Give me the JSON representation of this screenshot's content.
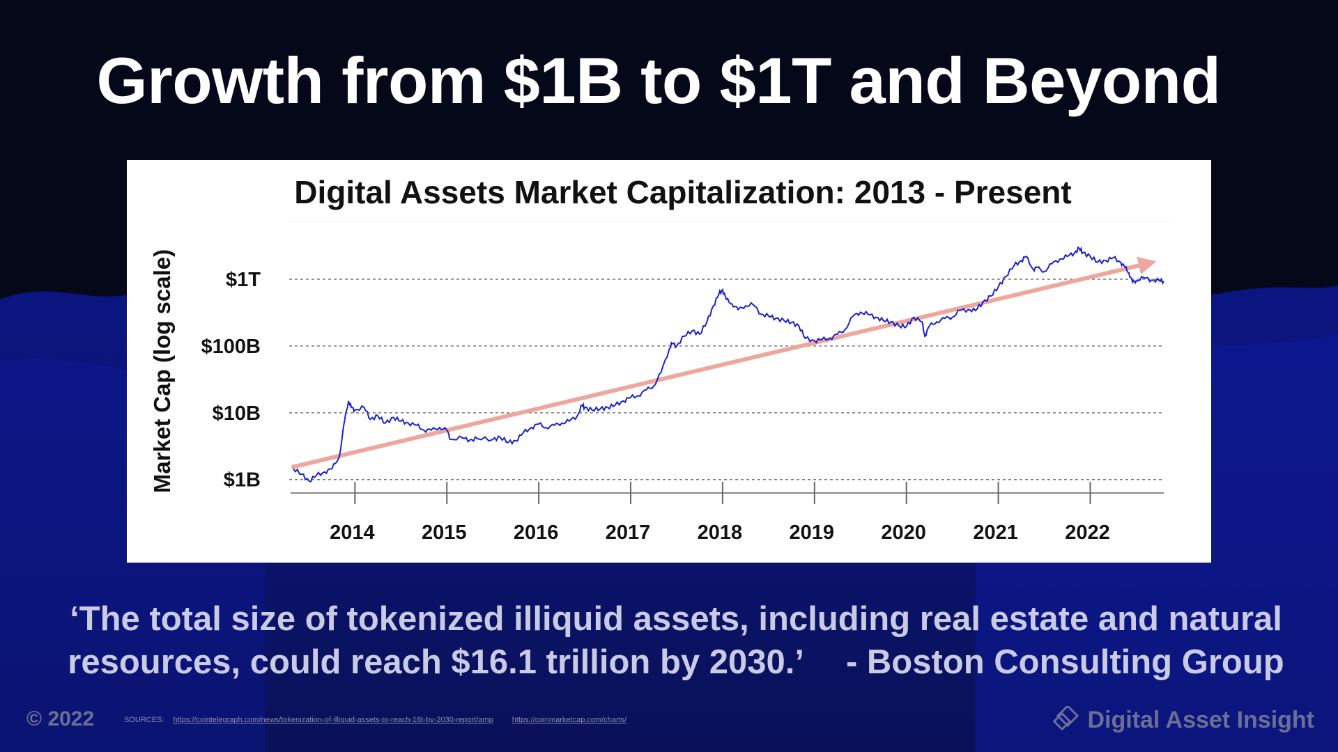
{
  "slide": {
    "headline": "Growth from $1B to $1T and Beyond",
    "quote_line1": "‘The total size of tokenized illiquid assets, including real estate and natural",
    "quote_line2": "resources, could reach $16.1 trillion by 2030.’",
    "quote_attribution": "- Boston Consulting Group",
    "copyright": "© 2022",
    "sources_label": "SOURCES:",
    "source_links": [
      "https://cointelegraph.com/news/tokenization-of-illiquid-assets-to-reach-16t-by-2030-report/amp",
      "https://coinmarketcap.com/charts/"
    ],
    "brand": "Digital Asset Insight",
    "logo_icon": "diamond-tag-icon"
  },
  "colors": {
    "background": "#050818",
    "wave": "#0e1a8c",
    "series_line": "#1a22c8",
    "trend_arrow": "#eda79c",
    "quote_text": "#c9cbe4"
  },
  "chart_data": {
    "type": "line",
    "title": "Digital Assets Market Capitalization: 2013 - Present",
    "ylabel": "Market Cap (log scale)",
    "xlabel": "",
    "y_scale": "log",
    "y_ticks": [
      {
        "value": 1000000000,
        "label": "$1B"
      },
      {
        "value": 10000000000,
        "label": "$10B"
      },
      {
        "value": 100000000000,
        "label": "$100B"
      },
      {
        "value": 1000000000000,
        "label": "$1T"
      }
    ],
    "ylim": [
      800000000,
      5000000000000
    ],
    "x_ticks": [
      2014,
      2015,
      2016,
      2017,
      2018,
      2019,
      2020,
      2021,
      2022
    ],
    "xlim": [
      2013.3,
      2022.8
    ],
    "grid": "horizontal-dashed",
    "series": [
      {
        "values": [
          [
            2013.33,
            1450000000.0
          ],
          [
            2013.42,
            1200000000.0
          ],
          [
            2013.5,
            950000000.0
          ],
          [
            2013.58,
            1150000000.0
          ],
          [
            2013.67,
            1300000000.0
          ],
          [
            2013.75,
            1450000000.0
          ],
          [
            2013.83,
            2200000000.0
          ],
          [
            2013.89,
            8000000000.0
          ],
          [
            2013.93,
            15000000000.0
          ],
          [
            2013.96,
            12000000000.0
          ],
          [
            2014.0,
            11000000000.0
          ],
          [
            2014.1,
            12000000000.0
          ],
          [
            2014.17,
            8000000000.0
          ],
          [
            2014.25,
            9000000000.0
          ],
          [
            2014.33,
            7000000000.0
          ],
          [
            2014.42,
            8500000000.0
          ],
          [
            2014.5,
            7500000000.0
          ],
          [
            2014.58,
            7000000000.0
          ],
          [
            2014.67,
            6500000000.0
          ],
          [
            2014.75,
            5500000000.0
          ],
          [
            2014.83,
            5500000000.0
          ],
          [
            2014.92,
            6000000000.0
          ],
          [
            2015.0,
            5500000000.0
          ],
          [
            2015.04,
            4000000000.0
          ],
          [
            2015.17,
            4200000000.0
          ],
          [
            2015.25,
            3900000000.0
          ],
          [
            2015.33,
            4100000000.0
          ],
          [
            2015.5,
            4000000000.0
          ],
          [
            2015.58,
            4300000000.0
          ],
          [
            2015.67,
            3600000000.0
          ],
          [
            2015.75,
            3800000000.0
          ],
          [
            2015.83,
            5000000000.0
          ],
          [
            2015.92,
            6000000000.0
          ],
          [
            2016.0,
            6800000000.0
          ],
          [
            2016.08,
            6000000000.0
          ],
          [
            2016.17,
            6500000000.0
          ],
          [
            2016.25,
            7000000000.0
          ],
          [
            2016.33,
            7500000000.0
          ],
          [
            2016.42,
            9000000000.0
          ],
          [
            2016.47,
            13000000000.0
          ],
          [
            2016.5,
            12000000000.0
          ],
          [
            2016.58,
            11000000000.0
          ],
          [
            2016.67,
            11500000000.0
          ],
          [
            2016.75,
            12000000000.0
          ],
          [
            2016.83,
            13000000000.0
          ],
          [
            2016.92,
            15000000000.0
          ],
          [
            2017.0,
            17000000000.0
          ],
          [
            2017.08,
            18000000000.0
          ],
          [
            2017.17,
            22000000000.0
          ],
          [
            2017.25,
            25000000000.0
          ],
          [
            2017.33,
            40000000000.0
          ],
          [
            2017.42,
            90000000000.0
          ],
          [
            2017.45,
            110000000000.0
          ],
          [
            2017.5,
            100000000000.0
          ],
          [
            2017.58,
            140000000000.0
          ],
          [
            2017.67,
            170000000000.0
          ],
          [
            2017.75,
            150000000000.0
          ],
          [
            2017.83,
            230000000000.0
          ],
          [
            2017.9,
            400000000000.0
          ],
          [
            2017.96,
            600000000000.0
          ],
          [
            2018.0,
            700000000000.0
          ],
          [
            2018.04,
            500000000000.0
          ],
          [
            2018.1,
            430000000000.0
          ],
          [
            2018.17,
            350000000000.0
          ],
          [
            2018.25,
            400000000000.0
          ],
          [
            2018.33,
            420000000000.0
          ],
          [
            2018.42,
            300000000000.0
          ],
          [
            2018.5,
            280000000000.0
          ],
          [
            2018.58,
            260000000000.0
          ],
          [
            2018.67,
            240000000000.0
          ],
          [
            2018.75,
            225000000000.0
          ],
          [
            2018.83,
            200000000000.0
          ],
          [
            2018.9,
            130000000000.0
          ],
          [
            2019.0,
            120000000000.0
          ],
          [
            2019.08,
            125000000000.0
          ],
          [
            2019.17,
            130000000000.0
          ],
          [
            2019.25,
            150000000000.0
          ],
          [
            2019.33,
            175000000000.0
          ],
          [
            2019.42,
            280000000000.0
          ],
          [
            2019.5,
            320000000000.0
          ],
          [
            2019.58,
            300000000000.0
          ],
          [
            2019.67,
            270000000000.0
          ],
          [
            2019.75,
            240000000000.0
          ],
          [
            2019.83,
            230000000000.0
          ],
          [
            2019.92,
            200000000000.0
          ],
          [
            2020.0,
            195000000000.0
          ],
          [
            2020.08,
            270000000000.0
          ],
          [
            2020.17,
            230000000000.0
          ],
          [
            2020.2,
            140000000000.0
          ],
          [
            2020.25,
            200000000000.0
          ],
          [
            2020.33,
            230000000000.0
          ],
          [
            2020.42,
            260000000000.0
          ],
          [
            2020.5,
            270000000000.0
          ],
          [
            2020.58,
            340000000000.0
          ],
          [
            2020.67,
            350000000000.0
          ],
          [
            2020.75,
            340000000000.0
          ],
          [
            2020.83,
            450000000000.0
          ],
          [
            2020.92,
            560000000000.0
          ],
          [
            2021.0,
            770000000000.0
          ],
          [
            2021.08,
            1100000000000.0
          ],
          [
            2021.17,
            1600000000000.0
          ],
          [
            2021.25,
            1900000000000.0
          ],
          [
            2021.3,
            2200000000000.0
          ],
          [
            2021.38,
            1400000000000.0
          ],
          [
            2021.42,
            1500000000000.0
          ],
          [
            2021.5,
            1300000000000.0
          ],
          [
            2021.58,
            1700000000000.0
          ],
          [
            2021.67,
            2000000000000.0
          ],
          [
            2021.75,
            2200000000000.0
          ],
          [
            2021.83,
            2500000000000.0
          ],
          [
            2021.88,
            2900000000000.0
          ],
          [
            2021.92,
            2500000000000.0
          ],
          [
            2022.0,
            2200000000000.0
          ],
          [
            2022.08,
            1800000000000.0
          ],
          [
            2022.17,
            1900000000000.0
          ],
          [
            2022.25,
            2100000000000.0
          ],
          [
            2022.33,
            1800000000000.0
          ],
          [
            2022.38,
            1500000000000.0
          ],
          [
            2022.42,
            1250000000000.0
          ],
          [
            2022.46,
            900000000000.0
          ],
          [
            2022.5,
            950000000000.0
          ],
          [
            2022.58,
            1050000000000.0
          ],
          [
            2022.67,
            970000000000.0
          ],
          [
            2022.75,
            950000000000.0
          ],
          [
            2022.8,
            930000000000.0
          ]
        ]
      }
    ],
    "trend_line": {
      "from": [
        2013.33,
        1550000000.0
      ],
      "to": [
        2022.72,
        1850000000000.0
      ]
    }
  }
}
